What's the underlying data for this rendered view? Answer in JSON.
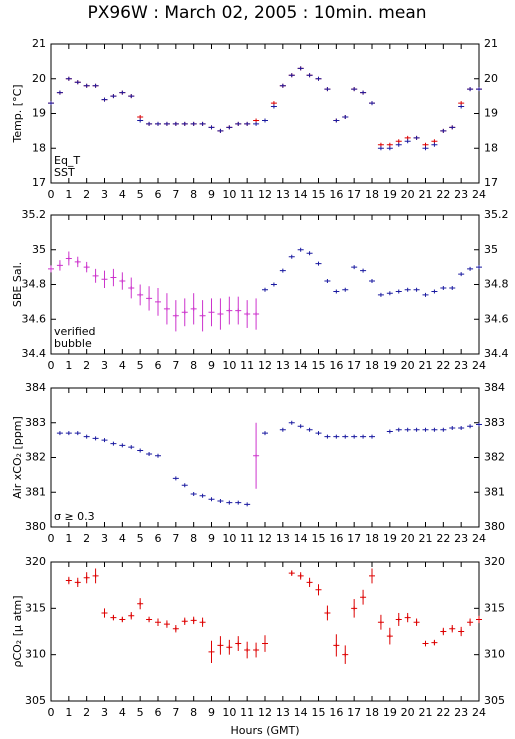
{
  "chart_data": [
    {
      "type": "scatter",
      "title": "PX96W : March 02, 2005 : 10min. mean",
      "ylabel": "Temp. [°C]",
      "x": [
        0,
        0.5,
        1,
        1.5,
        2,
        2.5,
        3,
        3.5,
        4,
        4.5,
        5,
        5.5,
        6,
        6.5,
        7,
        7.5,
        8,
        8.5,
        9,
        9.5,
        10,
        10.5,
        11,
        11.5,
        12,
        12.5,
        13,
        13.5,
        14,
        14.5,
        15,
        15.5,
        16,
        16.5,
        17,
        17.5,
        18,
        18.5,
        19,
        19.5,
        20,
        20.5,
        21,
        21.5,
        22,
        22.5,
        23,
        23.5,
        24
      ],
      "series": [
        {
          "name": "Eq_T",
          "color": "#dd0000",
          "values": [
            19.3,
            19.6,
            20.0,
            19.9,
            19.8,
            19.8,
            19.4,
            19.5,
            19.6,
            19.5,
            18.9,
            18.7,
            18.7,
            18.7,
            18.7,
            18.7,
            18.7,
            18.7,
            18.6,
            18.5,
            18.6,
            18.7,
            18.7,
            18.8,
            18.8,
            19.3,
            19.8,
            20.1,
            20.3,
            20.1,
            20.0,
            19.7,
            18.8,
            18.9,
            19.7,
            19.6,
            19.3,
            18.1,
            18.1,
            18.2,
            18.3,
            18.3,
            18.1,
            18.2,
            18.5,
            18.6,
            19.3,
            19.7,
            19.7
          ]
        },
        {
          "name": "SST",
          "color": "#1a1aa0",
          "values": [
            19.3,
            19.6,
            20.0,
            19.9,
            19.8,
            19.8,
            19.4,
            19.5,
            19.6,
            19.5,
            18.8,
            18.7,
            18.7,
            18.7,
            18.7,
            18.7,
            18.7,
            18.7,
            18.6,
            18.5,
            18.6,
            18.7,
            18.7,
            18.7,
            18.8,
            19.2,
            19.8,
            20.1,
            20.3,
            20.1,
            20.0,
            19.7,
            18.8,
            18.9,
            19.7,
            19.6,
            19.3,
            18.0,
            18.0,
            18.1,
            18.2,
            18.3,
            18.0,
            18.1,
            18.5,
            18.6,
            19.2,
            19.7,
            19.7
          ]
        }
      ],
      "xlim": [
        0,
        24
      ],
      "xticks": [
        0,
        1,
        2,
        3,
        4,
        5,
        6,
        7,
        8,
        9,
        10,
        11,
        12,
        13,
        14,
        15,
        16,
        17,
        18,
        19,
        20,
        21,
        22,
        23,
        24
      ],
      "ylim": [
        17,
        21
      ],
      "yticks": [
        17,
        18,
        19,
        20,
        21
      ],
      "legend": "lower left"
    },
    {
      "type": "scatter",
      "ylabel": "SBE Sal.",
      "x": [
        0,
        0.5,
        1,
        1.5,
        2,
        2.5,
        3,
        3.5,
        4,
        4.5,
        5,
        5.5,
        6,
        6.5,
        7,
        7.5,
        8,
        8.5,
        9,
        9.5,
        10,
        10.5,
        11,
        11.5,
        12,
        12.5,
        13,
        13.5,
        14,
        14.5,
        15,
        15.5,
        16,
        16.5,
        17,
        17.5,
        18,
        18.5,
        19,
        19.5,
        20,
        20.5,
        21,
        21.5,
        22,
        22.5,
        23,
        23.5,
        24
      ],
      "series": [
        {
          "name": "verified",
          "color": "#1a1aa0",
          "values": [
            null,
            null,
            null,
            null,
            null,
            null,
            null,
            null,
            null,
            null,
            null,
            null,
            null,
            null,
            null,
            null,
            null,
            null,
            null,
            null,
            null,
            null,
            null,
            null,
            34.77,
            34.8,
            34.88,
            34.96,
            35,
            34.98,
            34.92,
            34.82,
            34.76,
            34.77,
            34.9,
            34.88,
            34.82,
            34.74,
            34.75,
            34.76,
            34.77,
            34.77,
            34.74,
            34.76,
            34.78,
            34.78,
            34.86,
            34.89,
            34.9
          ]
        },
        {
          "name": "bubble",
          "color": "#cc33cc",
          "values": [
            34.89,
            34.91,
            34.95,
            34.93,
            34.9,
            34.85,
            34.83,
            34.84,
            34.82,
            34.78,
            34.74,
            34.72,
            34.7,
            34.66,
            34.62,
            34.64,
            34.66,
            34.62,
            34.64,
            34.63,
            34.65,
            34.65,
            34.63,
            34.63,
            null,
            null,
            null,
            null,
            null,
            null,
            null,
            null,
            null,
            null,
            null,
            null,
            null,
            null,
            null,
            null,
            null,
            null,
            null,
            null,
            null,
            null,
            null,
            null,
            null
          ],
          "errors": [
            0.02,
            0.03,
            0.04,
            0.03,
            0.03,
            0.04,
            0.05,
            0.05,
            0.05,
            0.06,
            0.06,
            0.07,
            0.08,
            0.09,
            0.09,
            0.08,
            0.09,
            0.09,
            0.08,
            0.09,
            0.08,
            0.08,
            0.08,
            0.09,
            null,
            null,
            null,
            null,
            null,
            null,
            null,
            null,
            null,
            null,
            null,
            null,
            null,
            null,
            null,
            null,
            null,
            null,
            null,
            null,
            null,
            null,
            null,
            null,
            null
          ]
        }
      ],
      "xlim": [
        0,
        24
      ],
      "xticks": [
        0,
        1,
        2,
        3,
        4,
        5,
        6,
        7,
        8,
        9,
        10,
        11,
        12,
        13,
        14,
        15,
        16,
        17,
        18,
        19,
        20,
        21,
        22,
        23,
        24
      ],
      "ylim": [
        34.4,
        35.2
      ],
      "yticks": [
        34.4,
        34.6,
        34.8,
        35,
        35.2
      ],
      "legend": "lower left"
    },
    {
      "type": "scatter",
      "ylabel": "Air xCO₂ [ppm]",
      "x": [
        0,
        0.5,
        1,
        1.5,
        2,
        2.5,
        3,
        3.5,
        4,
        4.5,
        5,
        5.5,
        6,
        6.5,
        7,
        7.5,
        8,
        8.5,
        9,
        9.5,
        10,
        10.5,
        11,
        11.5,
        12,
        12.5,
        13,
        13.5,
        14,
        14.5,
        15,
        15.5,
        16,
        16.5,
        17,
        17.5,
        18,
        18.5,
        19,
        19.5,
        20,
        20.5,
        21,
        21.5,
        22,
        22.5,
        23,
        23.5,
        24
      ],
      "series": [
        {
          "color": "#1a1aa0",
          "values": [
            null,
            382.7,
            382.7,
            382.7,
            382.6,
            382.55,
            382.5,
            382.4,
            382.35,
            382.3,
            382.2,
            382.1,
            382.05,
            null,
            381.4,
            381.2,
            380.95,
            380.9,
            380.8,
            380.75,
            380.7,
            380.7,
            380.65,
            null,
            382.7,
            null,
            382.8,
            383.0,
            382.9,
            382.8,
            382.7,
            382.6,
            382.6,
            382.6,
            382.6,
            382.6,
            382.6,
            null,
            382.75,
            382.8,
            382.8,
            382.8,
            382.8,
            382.8,
            382.8,
            382.85,
            382.85,
            382.9,
            382.95
          ]
        },
        {
          "name": "σ ≥ 0.3",
          "color": "#cc33cc",
          "values": [
            null,
            null,
            null,
            null,
            null,
            null,
            null,
            null,
            null,
            null,
            null,
            null,
            null,
            null,
            null,
            null,
            null,
            null,
            null,
            null,
            null,
            null,
            null,
            382.05,
            null,
            null,
            null,
            null,
            null,
            null,
            null,
            null,
            null,
            null,
            null,
            null,
            null,
            null,
            null,
            null,
            null,
            null,
            null,
            null,
            null,
            null,
            null,
            null,
            null
          ],
          "errors": [
            null,
            null,
            null,
            null,
            null,
            null,
            null,
            null,
            null,
            null,
            null,
            null,
            null,
            null,
            null,
            null,
            null,
            null,
            null,
            null,
            null,
            null,
            null,
            0.95,
            null,
            null,
            null,
            null,
            null,
            null,
            null,
            null,
            null,
            null,
            null,
            null,
            null,
            null,
            null,
            null,
            null,
            null,
            null,
            null,
            null,
            null,
            null,
            null,
            null
          ]
        }
      ],
      "xlim": [
        0,
        24
      ],
      "xticks": [
        0,
        1,
        2,
        3,
        4,
        5,
        6,
        7,
        8,
        9,
        10,
        11,
        12,
        13,
        14,
        15,
        16,
        17,
        18,
        19,
        20,
        21,
        22,
        23,
        24
      ],
      "ylim": [
        380,
        384
      ],
      "yticks": [
        380,
        381,
        382,
        383,
        384
      ],
      "legend": "lower left"
    },
    {
      "type": "scatter",
      "ylabel": "ρCO₂ [μ atm]",
      "xlabel": "Hours (GMT)",
      "x": [
        0,
        0.5,
        1,
        1.5,
        2,
        2.5,
        3,
        3.5,
        4,
        4.5,
        5,
        5.5,
        6,
        6.5,
        7,
        7.5,
        8,
        8.5,
        9,
        9.5,
        10,
        10.5,
        11,
        11.5,
        12,
        12.5,
        13,
        13.5,
        14,
        14.5,
        15,
        15.5,
        16,
        16.5,
        17,
        17.5,
        18,
        18.5,
        19,
        19.5,
        20,
        20.5,
        21,
        21.5,
        22,
        22.5,
        23,
        23.5,
        24
      ],
      "series": [
        {
          "color": "#dd0000",
          "values": [
            null,
            null,
            318.0,
            317.8,
            318.3,
            318.5,
            314.5,
            314.0,
            313.8,
            314.2,
            315.5,
            313.8,
            313.5,
            313.3,
            312.8,
            313.6,
            313.7,
            313.5,
            310.3,
            311.0,
            310.8,
            311.2,
            310.5,
            310.5,
            311.2,
            null,
            null,
            318.8,
            318.5,
            317.8,
            317.0,
            314.5,
            311.0,
            310.0,
            315.0,
            316.2,
            318.5,
            313.5,
            312.0,
            313.8,
            314.0,
            313.5,
            311.2,
            311.3,
            312.5,
            312.8,
            312.5,
            313.5,
            313.8
          ],
          "errors": [
            null,
            null,
            0.4,
            0.5,
            0.6,
            0.8,
            0.5,
            0.3,
            0.3,
            0.4,
            0.6,
            0.3,
            0.4,
            0.4,
            0.4,
            0.4,
            0.4,
            0.5,
            1.2,
            1.0,
            0.8,
            0.8,
            0.9,
            0.8,
            0.9,
            null,
            null,
            0.3,
            0.4,
            0.5,
            0.6,
            0.8,
            1.2,
            1.0,
            1.0,
            0.8,
            0.8,
            0.8,
            0.9,
            0.7,
            0.5,
            0.4,
            0.3,
            0.3,
            0.4,
            0.4,
            0.5,
            0.4,
            0.4
          ]
        }
      ],
      "xlim": [
        0,
        24
      ],
      "xticks": [
        0,
        1,
        2,
        3,
        4,
        5,
        6,
        7,
        8,
        9,
        10,
        11,
        12,
        13,
        14,
        15,
        16,
        17,
        18,
        19,
        20,
        21,
        22,
        23,
        24
      ],
      "ylim": [
        305,
        320
      ],
      "yticks": [
        305,
        310,
        315,
        320
      ]
    }
  ]
}
